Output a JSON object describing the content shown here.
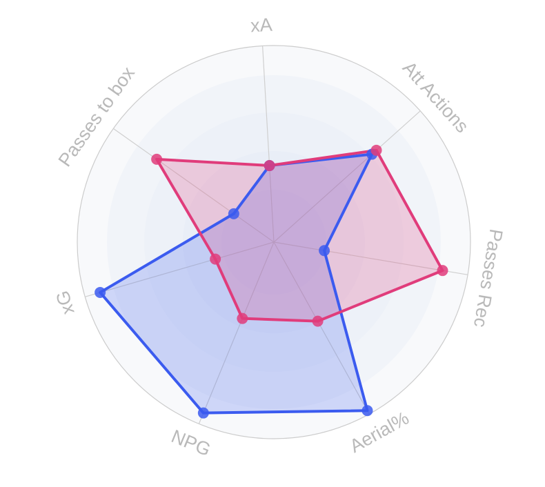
{
  "chart_data": {
    "type": "radar",
    "axes": [
      "xA",
      "Att Actions",
      "Passes Rec",
      "Aerial%",
      "NPG",
      "xG",
      "Passes to box"
    ],
    "range": [
      0,
      100
    ],
    "grid": true,
    "legend": "none",
    "series": [
      {
        "color": "#3b5bef",
        "values": [
          39,
          67,
          26,
          98,
          94,
          92,
          25
        ]
      },
      {
        "color": "#e03c7b",
        "values": [
          39,
          70,
          87,
          46,
          42,
          31,
          73
        ]
      }
    ]
  }
}
